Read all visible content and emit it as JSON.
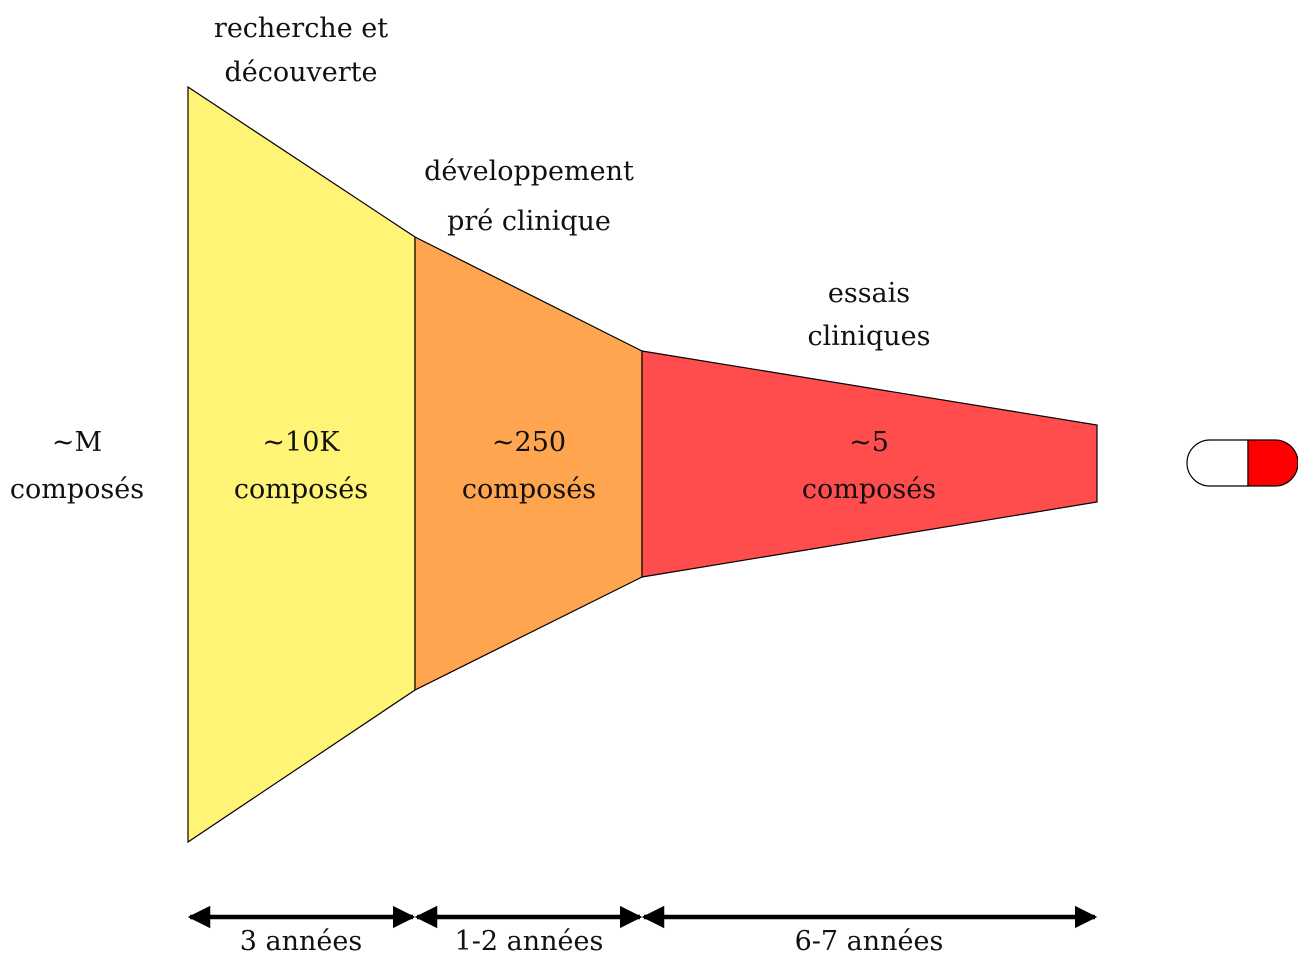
{
  "input_label": {
    "line1": "~M",
    "line2": "composés"
  },
  "stages": [
    {
      "title_line1": "recherche et",
      "title_line2": "découverte",
      "count_line1": "~10K",
      "count_line2": "composés",
      "duration": "3 années",
      "color": "#fff475"
    },
    {
      "title_line1": "développement",
      "title_line2": "pré clinique",
      "count_line1": "~250",
      "count_line2": "composés",
      "duration": "1-2 années",
      "color": "#ffa54f"
    },
    {
      "title_line1": "essais",
      "title_line2": "cliniques",
      "count_line1": "~5",
      "count_line2": "composés",
      "duration": "6-7 années",
      "color": "#ff4c4c"
    }
  ],
  "output_icon": {
    "name": "capsule-icon",
    "left_color": "#ffffff",
    "right_color": "#ff0000"
  }
}
